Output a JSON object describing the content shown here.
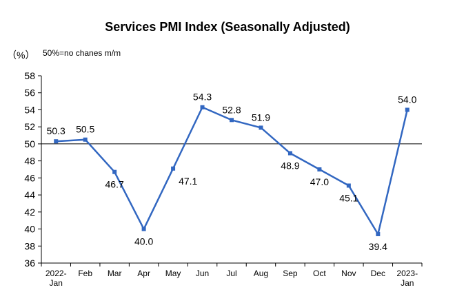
{
  "chart_data": {
    "type": "line",
    "title": "Services PMI Index (Seasonally Adjusted)",
    "ylabel": "（%）",
    "note": "50%=no chanes m/m",
    "ylim": [
      36,
      58
    ],
    "yticks": [
      36,
      38,
      40,
      42,
      44,
      46,
      48,
      50,
      52,
      54,
      56,
      58
    ],
    "reference_line": 50,
    "grid": false,
    "categories": [
      [
        "2022-",
        "Jan"
      ],
      [
        "Feb"
      ],
      [
        "Mar"
      ],
      [
        "Apr"
      ],
      [
        "May"
      ],
      [
        "Jun"
      ],
      [
        "Jul"
      ],
      [
        "Aug"
      ],
      [
        "Sep"
      ],
      [
        "Oct"
      ],
      [
        "Nov"
      ],
      [
        "Dec"
      ],
      [
        "2023-",
        "Jan"
      ]
    ],
    "values": [
      50.3,
      50.5,
      46.7,
      40.0,
      47.1,
      54.3,
      52.8,
      51.9,
      48.9,
      47.0,
      45.1,
      39.4,
      54.0
    ],
    "value_labels": [
      "50.3",
      "50.5",
      "46.7",
      "40.0",
      "47.1",
      "54.3",
      "52.8",
      "51.9",
      "48.9",
      "47.0",
      "45.1",
      "39.4",
      "54.0"
    ],
    "label_positions": [
      "above",
      "above",
      "below",
      "below",
      "right",
      "above",
      "above",
      "above",
      "below",
      "below",
      "below",
      "below",
      "above"
    ],
    "colors": {
      "line": "#3267c1",
      "marker": "#3267c1",
      "axis": "#000000",
      "refline": "#000000"
    }
  }
}
